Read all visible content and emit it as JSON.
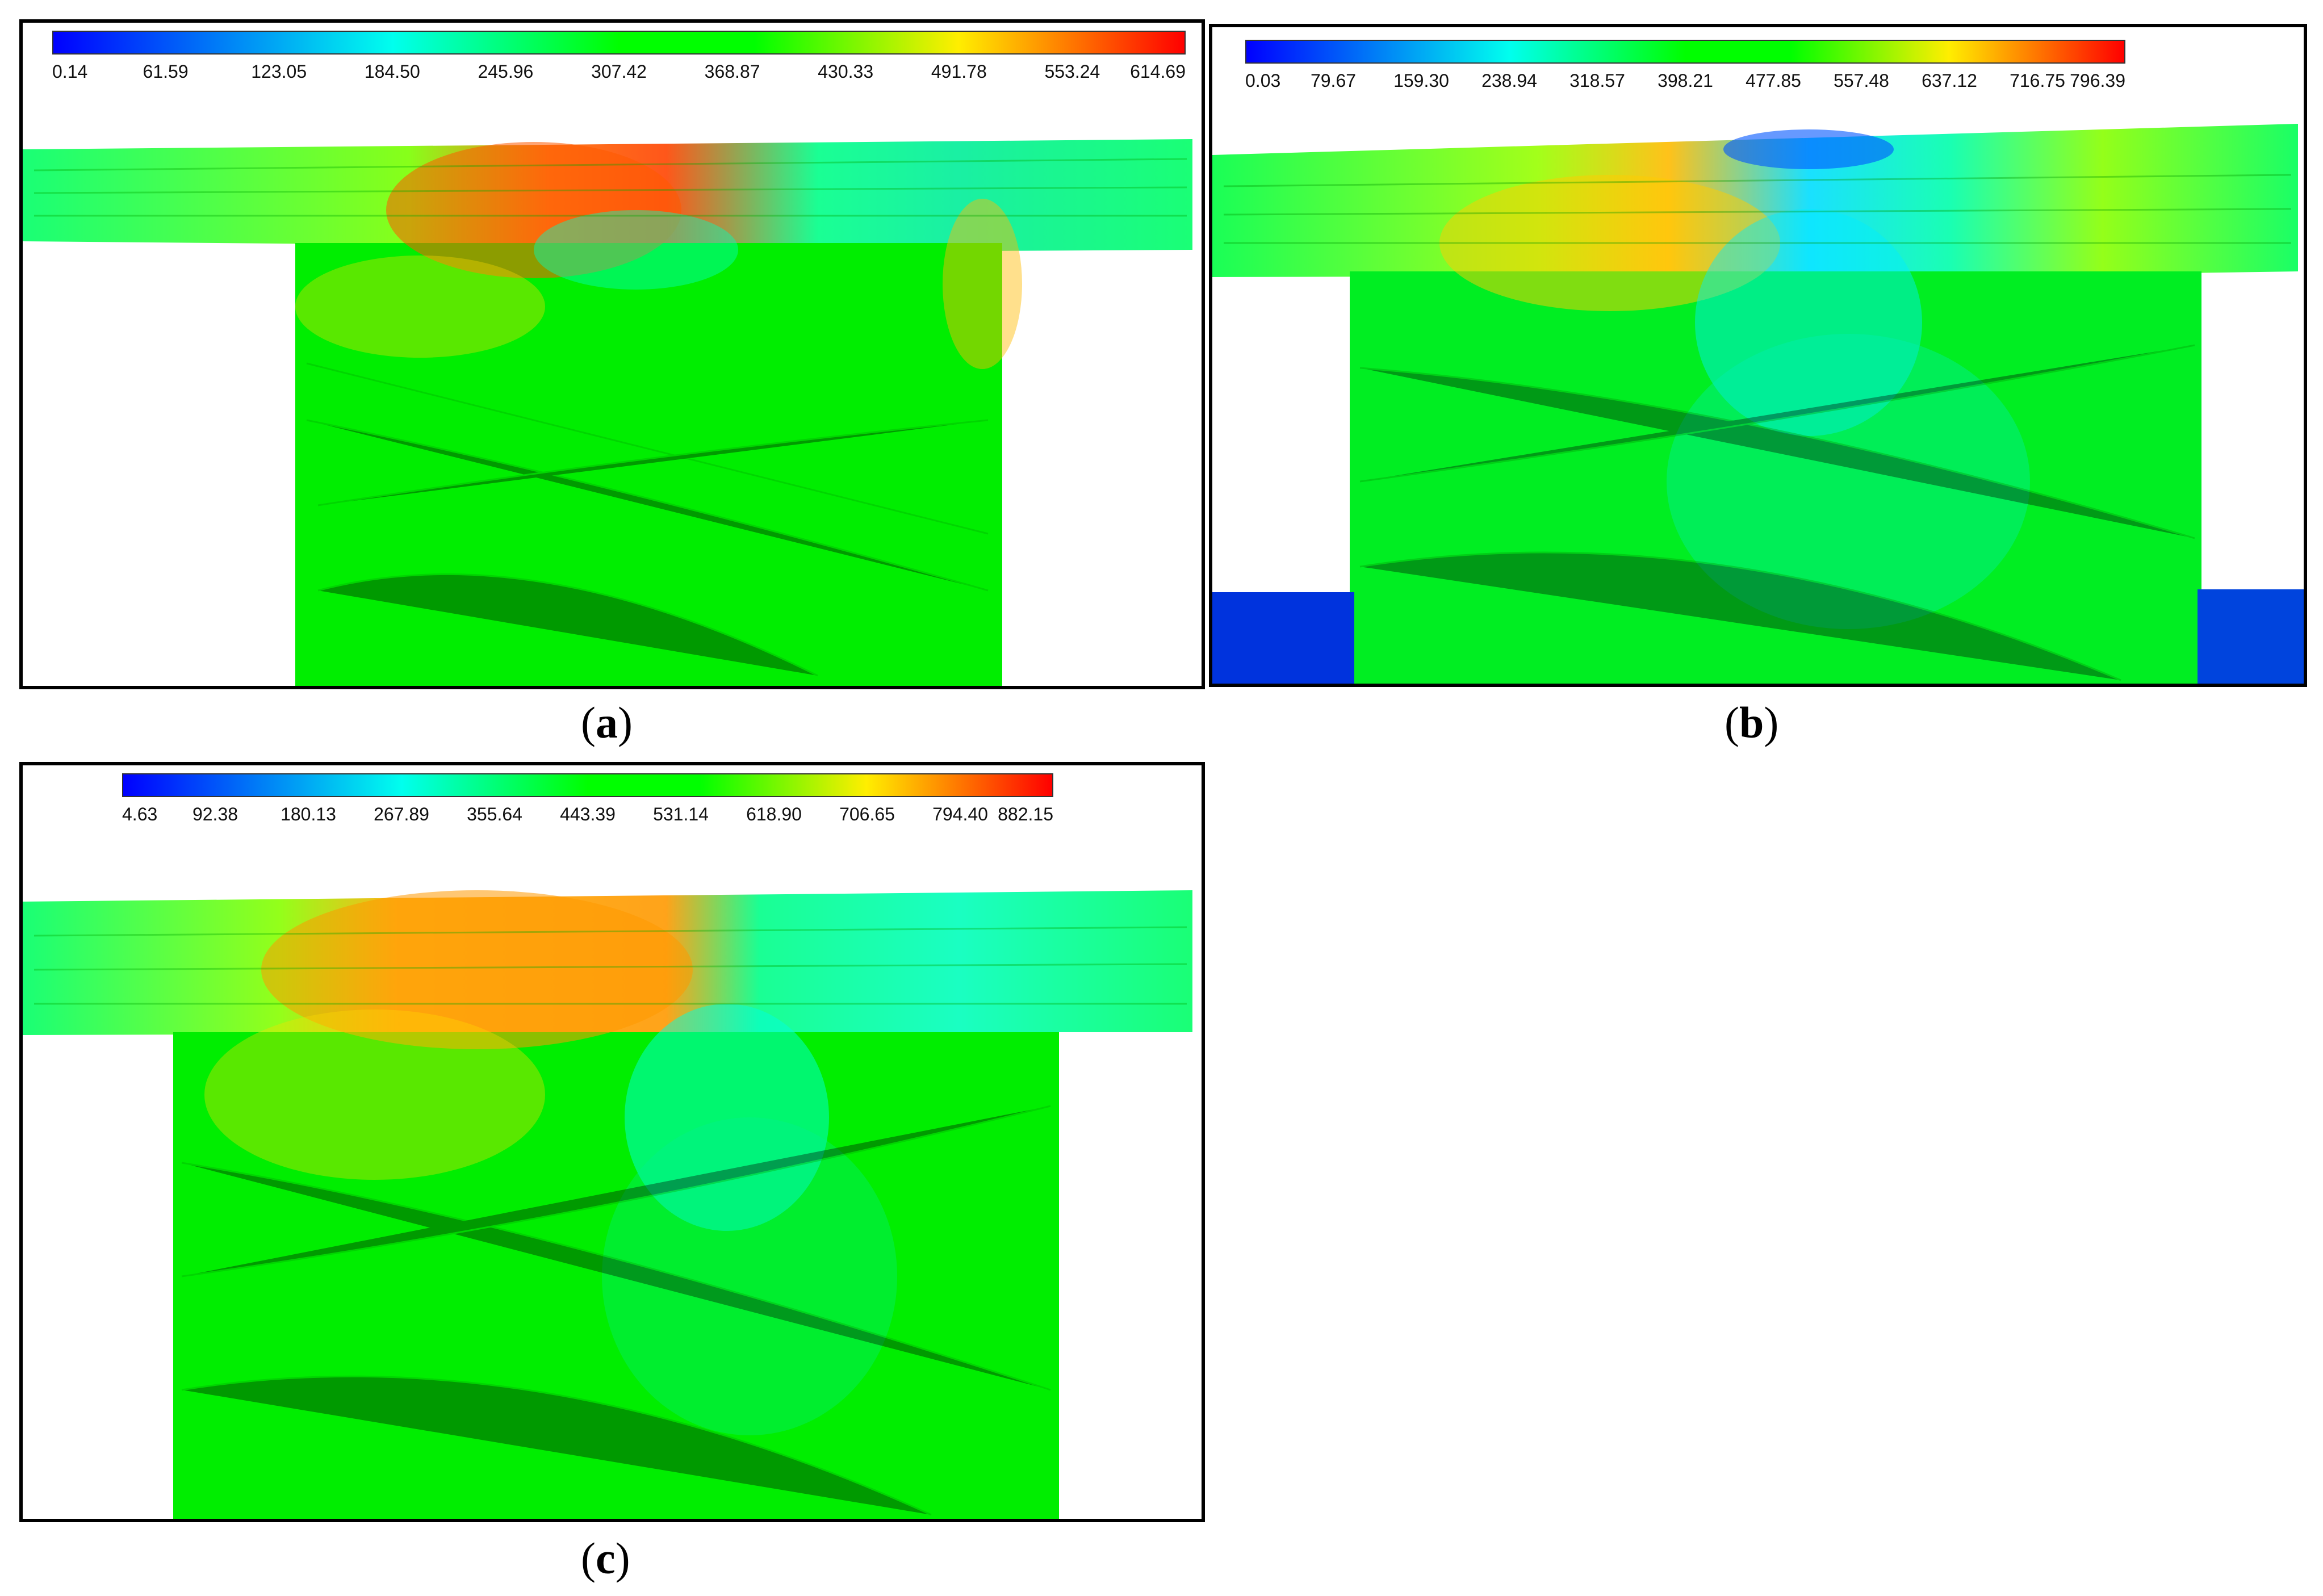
{
  "colors": {
    "blue": "#0000ff",
    "cyan": "#00ffee",
    "green": "#00ff00",
    "yellow": "#ffee00",
    "red": "#ff0000"
  },
  "panels": [
    {
      "id": "a",
      "caption_open": "(",
      "caption_letter": "a",
      "caption_close": ")",
      "colorbar_min": 0.14,
      "colorbar_max": 614.69,
      "ticks": [
        "0.14",
        "61.59",
        "123.05",
        "184.50",
        "245.96",
        "307.42",
        "368.87",
        "430.33",
        "491.78",
        "553.24",
        "614.69"
      ]
    },
    {
      "id": "b",
      "caption_open": "(",
      "caption_letter": "b",
      "caption_close": ")",
      "colorbar_min": 0.03,
      "colorbar_max": 796.39,
      "ticks": [
        "0.03",
        "79.67",
        "159.30",
        "238.94",
        "318.57",
        "398.21",
        "477.85",
        "557.48",
        "637.12",
        "716.75",
        "796.39"
      ]
    },
    {
      "id": "c",
      "caption_open": "(",
      "caption_letter": "c",
      "caption_close": ")",
      "colorbar_min": 4.63,
      "colorbar_max": 882.15,
      "ticks": [
        "4.63",
        "92.38",
        "180.13",
        "267.89",
        "355.64",
        "443.39",
        "531.14",
        "618.90",
        "706.65",
        "794.40",
        "882.15"
      ]
    }
  ]
}
